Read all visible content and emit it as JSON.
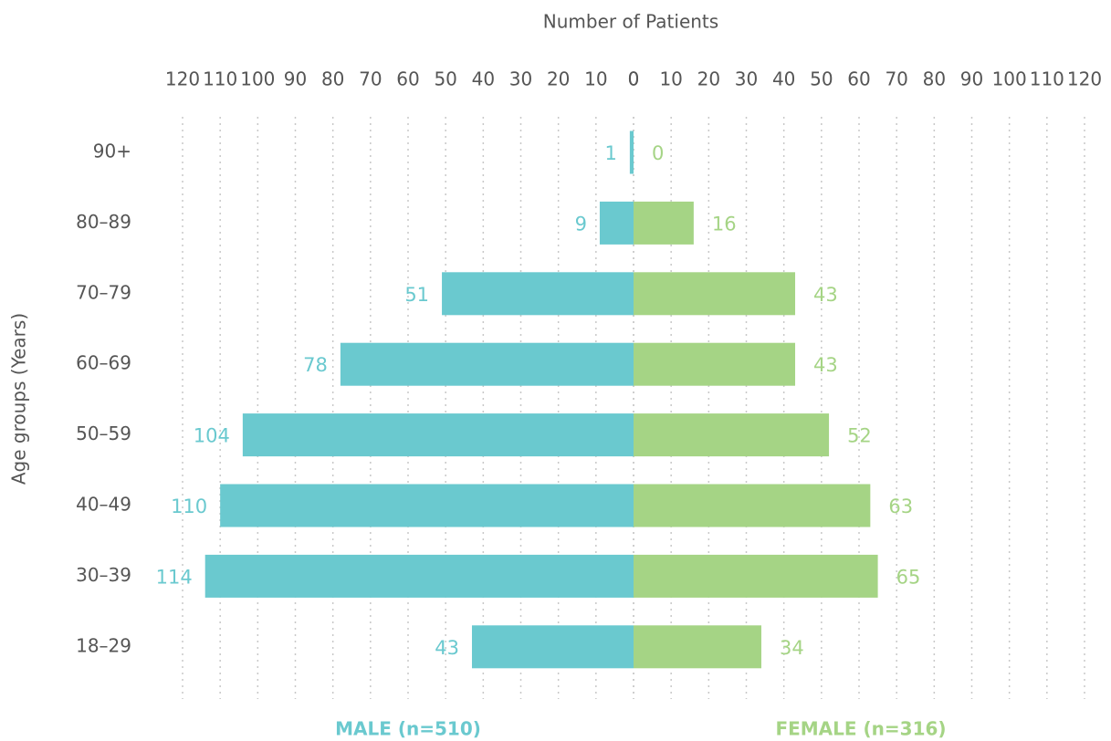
{
  "chart_data": {
    "type": "population-pyramid",
    "orientation": "horizontal",
    "xlabel": "Number of Patients",
    "ylabel": "Age groups (Years)",
    "categories": [
      "90+",
      "80–89",
      "70–79",
      "60–69",
      "50–59",
      "40–49",
      "30–39",
      "18–29"
    ],
    "series": [
      {
        "name": "MALE (n=510)",
        "color": "#6ac9cf",
        "side": "left",
        "values": [
          1,
          9,
          51,
          78,
          104,
          110,
          114,
          43
        ]
      },
      {
        "name": "FEMALE (n=316)",
        "color": "#a5d485",
        "side": "right",
        "values": [
          0,
          16,
          43,
          43,
          52,
          63,
          65,
          34
        ]
      }
    ],
    "xlim": [
      0,
      120
    ],
    "xticks": [
      0,
      10,
      20,
      30,
      40,
      50,
      60,
      70,
      80,
      90,
      100,
      110,
      120
    ],
    "grid": true
  }
}
